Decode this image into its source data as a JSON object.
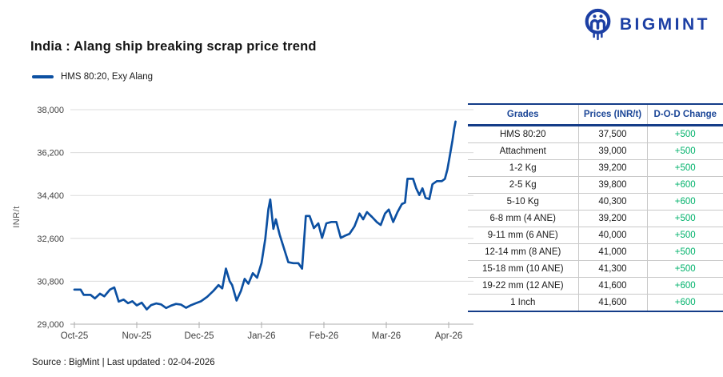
{
  "header": {
    "title": "India : Alang ship breaking scrap price trend",
    "brand": "BIGMINT"
  },
  "legend": {
    "label": "HMS 80:20, Exy Alang"
  },
  "colors": {
    "line": "#0C50A2",
    "brand_navy": "#1C3FA4",
    "table_navy": "#143C88",
    "header_text": "#1B4697",
    "positive_green": "#00B26B",
    "grid": "#DCDCDC",
    "axis": "#ACACAC",
    "tick_text": "#3F3F3F"
  },
  "chart_data": {
    "type": "line",
    "title": "India : Alang ship breaking scrap price trend",
    "series_name": "HMS 80:20, Exy Alang",
    "ylabel": "INR/t",
    "xlabel": "",
    "grid": true,
    "legend_position": "top-left",
    "x_categories": [
      "Oct-25",
      "Nov-25",
      "Dec-25",
      "Jan-26",
      "Feb-26",
      "Mar-26",
      "Apr-26"
    ],
    "y_ticks": [
      29000,
      30800,
      32600,
      34400,
      36200,
      38000
    ],
    "ylim": [
      29000,
      38000
    ],
    "points_unit_x": "months since Oct-25",
    "points": [
      [
        0.0,
        30450
      ],
      [
        0.1,
        30450
      ],
      [
        0.15,
        30230
      ],
      [
        0.26,
        30230
      ],
      [
        0.33,
        30080
      ],
      [
        0.41,
        30280
      ],
      [
        0.48,
        30170
      ],
      [
        0.57,
        30450
      ],
      [
        0.64,
        30540
      ],
      [
        0.71,
        29950
      ],
      [
        0.79,
        30030
      ],
      [
        0.86,
        29880
      ],
      [
        0.93,
        29960
      ],
      [
        1.0,
        29790
      ],
      [
        1.08,
        29900
      ],
      [
        1.16,
        29620
      ],
      [
        1.23,
        29800
      ],
      [
        1.31,
        29870
      ],
      [
        1.39,
        29830
      ],
      [
        1.47,
        29680
      ],
      [
        1.55,
        29780
      ],
      [
        1.63,
        29850
      ],
      [
        1.71,
        29820
      ],
      [
        1.79,
        29690
      ],
      [
        1.87,
        29800
      ],
      [
        1.95,
        29880
      ],
      [
        2.03,
        29960
      ],
      [
        2.13,
        30150
      ],
      [
        2.23,
        30400
      ],
      [
        2.31,
        30640
      ],
      [
        2.37,
        30500
      ],
      [
        2.43,
        31330
      ],
      [
        2.49,
        30800
      ],
      [
        2.53,
        30640
      ],
      [
        2.6,
        29990
      ],
      [
        2.67,
        30400
      ],
      [
        2.73,
        30900
      ],
      [
        2.79,
        30700
      ],
      [
        2.86,
        31140
      ],
      [
        2.93,
        30950
      ],
      [
        3.0,
        31570
      ],
      [
        3.06,
        32580
      ],
      [
        3.11,
        33830
      ],
      [
        3.14,
        34230
      ],
      [
        3.19,
        33000
      ],
      [
        3.23,
        33400
      ],
      [
        3.29,
        32760
      ],
      [
        3.35,
        32260
      ],
      [
        3.43,
        31600
      ],
      [
        3.51,
        31560
      ],
      [
        3.59,
        31560
      ],
      [
        3.65,
        31330
      ],
      [
        3.71,
        33540
      ],
      [
        3.77,
        33540
      ],
      [
        3.84,
        33030
      ],
      [
        3.91,
        33230
      ],
      [
        3.97,
        32620
      ],
      [
        4.04,
        33230
      ],
      [
        4.12,
        33290
      ],
      [
        4.2,
        33290
      ],
      [
        4.27,
        32620
      ],
      [
        4.33,
        32700
      ],
      [
        4.41,
        32790
      ],
      [
        4.49,
        33100
      ],
      [
        4.57,
        33640
      ],
      [
        4.63,
        33400
      ],
      [
        4.69,
        33700
      ],
      [
        4.77,
        33500
      ],
      [
        4.85,
        33280
      ],
      [
        4.91,
        33160
      ],
      [
        4.98,
        33640
      ],
      [
        5.04,
        33810
      ],
      [
        5.11,
        33290
      ],
      [
        5.18,
        33700
      ],
      [
        5.25,
        34040
      ],
      [
        5.3,
        34100
      ],
      [
        5.34,
        35100
      ],
      [
        5.43,
        35100
      ],
      [
        5.48,
        34700
      ],
      [
        5.53,
        34420
      ],
      [
        5.58,
        34700
      ],
      [
        5.63,
        34300
      ],
      [
        5.69,
        34250
      ],
      [
        5.74,
        34870
      ],
      [
        5.81,
        35000
      ],
      [
        5.89,
        35000
      ],
      [
        5.94,
        35100
      ],
      [
        5.98,
        35490
      ],
      [
        6.02,
        36100
      ],
      [
        6.06,
        36700
      ],
      [
        6.09,
        37220
      ],
      [
        6.11,
        37500
      ]
    ]
  },
  "table": {
    "columns": [
      "Grades",
      "Prices (INR/t)",
      "D-O-D Change"
    ],
    "rows": [
      {
        "grade": "HMS 80:20",
        "price": "37,500",
        "change": "+500"
      },
      {
        "grade": "Attachment",
        "price": "39,000",
        "change": "+500"
      },
      {
        "grade": "1-2 Kg",
        "price": "39,200",
        "change": "+500"
      },
      {
        "grade": "2-5 Kg",
        "price": "39,800",
        "change": "+600"
      },
      {
        "grade": "5-10 Kg",
        "price": "40,300",
        "change": "+600"
      },
      {
        "grade": "6-8 mm (4 ANE)",
        "price": "39,200",
        "change": "+500"
      },
      {
        "grade": "9-11 mm (6 ANE)",
        "price": "40,000",
        "change": "+500"
      },
      {
        "grade": "12-14 mm (8 ANE)",
        "price": "41,000",
        "change": "+500"
      },
      {
        "grade": "15-18 mm (10 ANE)",
        "price": "41,300",
        "change": "+500"
      },
      {
        "grade": "19-22 mm (12 ANE)",
        "price": "41,600",
        "change": "+600"
      },
      {
        "grade": "1 Inch",
        "price": "41,600",
        "change": "+600"
      }
    ]
  },
  "footer": {
    "source": "Source : BigMint | Last updated : 02-04-2026"
  }
}
